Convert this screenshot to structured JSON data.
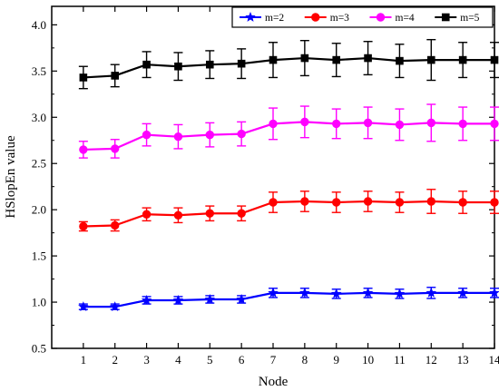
{
  "chart_data": {
    "type": "line",
    "xlabel": "Node",
    "ylabel": "HSlopEn value",
    "x": [
      1,
      2,
      3,
      4,
      5,
      6,
      7,
      8,
      9,
      10,
      11,
      12,
      13,
      14
    ],
    "xlim": [
      0,
      14
    ],
    "ylim": [
      0.5,
      4.2
    ],
    "yticks": [
      0.5,
      1.0,
      1.5,
      2.0,
      2.5,
      3.0,
      3.5,
      4.0
    ],
    "ytick_labels": [
      "0.5",
      "1.0",
      "1.5",
      "2.0",
      "2.5",
      "3.0",
      "3.5",
      "4.0"
    ],
    "xtick_labels": [
      "1",
      "2",
      "3",
      "4",
      "5",
      "6",
      "7",
      "8",
      "9",
      "10",
      "11",
      "12",
      "13",
      "14"
    ],
    "grid": false,
    "legend_position": "top-right",
    "series": [
      {
        "name": "m=2",
        "color": "#0000ff",
        "marker": "star",
        "values": [
          0.95,
          0.95,
          1.02,
          1.02,
          1.03,
          1.03,
          1.1,
          1.1,
          1.09,
          1.1,
          1.09,
          1.1,
          1.1,
          1.1
        ],
        "errors": [
          0.03,
          0.03,
          0.04,
          0.04,
          0.04,
          0.04,
          0.05,
          0.05,
          0.05,
          0.05,
          0.05,
          0.06,
          0.05,
          0.05
        ]
      },
      {
        "name": "m=3",
        "color": "#ff0000",
        "marker": "circle",
        "values": [
          1.82,
          1.83,
          1.95,
          1.94,
          1.96,
          1.96,
          2.08,
          2.09,
          2.08,
          2.09,
          2.08,
          2.09,
          2.08,
          2.08
        ],
        "errors": [
          0.05,
          0.06,
          0.07,
          0.08,
          0.08,
          0.08,
          0.11,
          0.11,
          0.11,
          0.11,
          0.11,
          0.13,
          0.12,
          0.12
        ]
      },
      {
        "name": "m=4",
        "color": "#ff00ff",
        "marker": "circle",
        "values": [
          2.65,
          2.66,
          2.81,
          2.79,
          2.81,
          2.82,
          2.93,
          2.95,
          2.93,
          2.94,
          2.92,
          2.94,
          2.93,
          2.93
        ],
        "errors": [
          0.09,
          0.1,
          0.12,
          0.13,
          0.13,
          0.13,
          0.17,
          0.17,
          0.16,
          0.17,
          0.17,
          0.2,
          0.18,
          0.18
        ]
      },
      {
        "name": "m=5",
        "color": "#000000",
        "marker": "square",
        "values": [
          3.43,
          3.45,
          3.57,
          3.55,
          3.57,
          3.58,
          3.62,
          3.64,
          3.62,
          3.64,
          3.61,
          3.62,
          3.62,
          3.62
        ],
        "errors": [
          0.12,
          0.12,
          0.14,
          0.15,
          0.15,
          0.16,
          0.19,
          0.19,
          0.18,
          0.18,
          0.18,
          0.22,
          0.19,
          0.19
        ]
      }
    ]
  }
}
